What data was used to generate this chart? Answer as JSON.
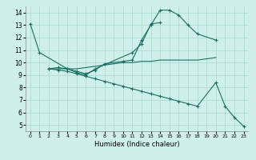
{
  "xlabel": "Humidex (Indice chaleur)",
  "bg_color": "#cff0ea",
  "grid_color": "#a8d8d0",
  "line_color": "#1a6e62",
  "xlim": [
    -0.5,
    23.5
  ],
  "ylim": [
    4.5,
    14.5
  ],
  "xticks": [
    0,
    1,
    2,
    3,
    4,
    5,
    6,
    7,
    8,
    9,
    10,
    11,
    12,
    13,
    14,
    15,
    16,
    17,
    18,
    19,
    20,
    21,
    22,
    23
  ],
  "yticks": [
    5,
    6,
    7,
    8,
    9,
    10,
    11,
    12,
    13,
    14
  ],
  "line1_x": [
    0,
    1,
    4,
    5,
    6,
    7,
    8,
    10,
    11,
    12,
    13,
    14,
    15,
    16,
    17,
    18,
    20
  ],
  "line1_y": [
    13.1,
    10.8,
    9.5,
    9.3,
    9.1,
    9.4,
    9.9,
    10.1,
    10.2,
    11.8,
    13.0,
    14.2,
    14.2,
    13.8,
    13.0,
    12.3,
    11.8
  ],
  "line2_x": [
    2,
    3,
    4,
    5,
    6,
    7,
    11,
    12,
    13,
    14
  ],
  "line2_y": [
    9.5,
    9.6,
    9.5,
    9.2,
    9.0,
    9.5,
    10.8,
    11.5,
    13.1,
    13.2
  ],
  "line3_x": [
    2,
    3,
    4,
    5,
    6,
    7,
    8,
    9,
    10,
    11,
    12,
    13,
    14,
    15,
    16,
    17,
    18,
    20,
    21,
    22,
    23
  ],
  "line3_y": [
    9.5,
    9.4,
    9.3,
    9.1,
    8.9,
    8.7,
    8.5,
    8.3,
    8.1,
    7.9,
    7.7,
    7.5,
    7.3,
    7.1,
    6.9,
    6.7,
    6.5,
    8.4,
    6.5,
    5.6,
    4.9
  ],
  "line4_x": [
    2,
    3,
    4,
    5,
    6,
    7,
    8,
    9,
    10,
    11,
    12,
    13,
    14,
    15,
    16,
    17,
    18,
    19,
    20
  ],
  "line4_y": [
    9.5,
    9.5,
    9.5,
    9.5,
    9.6,
    9.7,
    9.8,
    9.9,
    10.0,
    10.0,
    10.1,
    10.1,
    10.2,
    10.2,
    10.2,
    10.2,
    10.2,
    10.3,
    10.4
  ]
}
